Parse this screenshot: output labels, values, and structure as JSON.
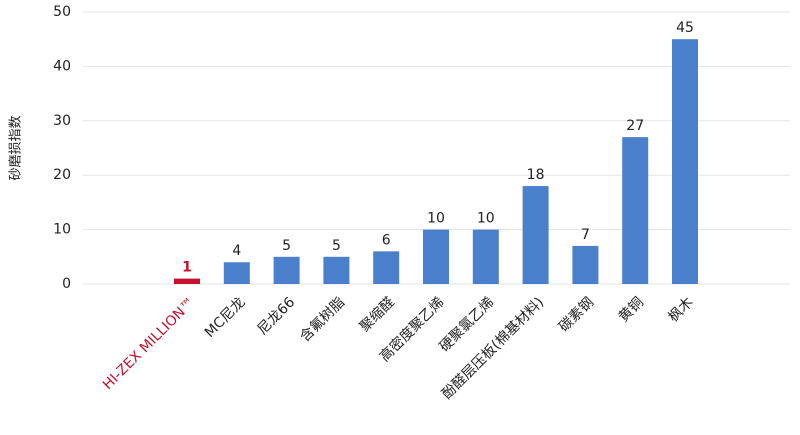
{
  "chart_data": {
    "type": "bar",
    "y_label": "砂磨损指数",
    "categories": [
      "HI-ZEX MILLION™",
      "MC尼龙",
      "尼龙66",
      "含氟树脂",
      "聚缩醛",
      "高密度聚乙烯",
      "硬聚氯乙烯",
      "酚醛层压板(棉基材料)",
      "碳素钢",
      "黄铜",
      "枫木"
    ],
    "values": [
      1,
      4,
      5,
      5,
      6,
      10,
      10,
      18,
      7,
      27,
      45
    ],
    "color": "#4a7fcb",
    "highlight_color": "#c41230",
    "highlight_indices": [
      0
    ],
    "ylim": [
      0,
      50
    ],
    "yticks": [
      0,
      10,
      20,
      30,
      40,
      50
    ],
    "grid": true
  }
}
